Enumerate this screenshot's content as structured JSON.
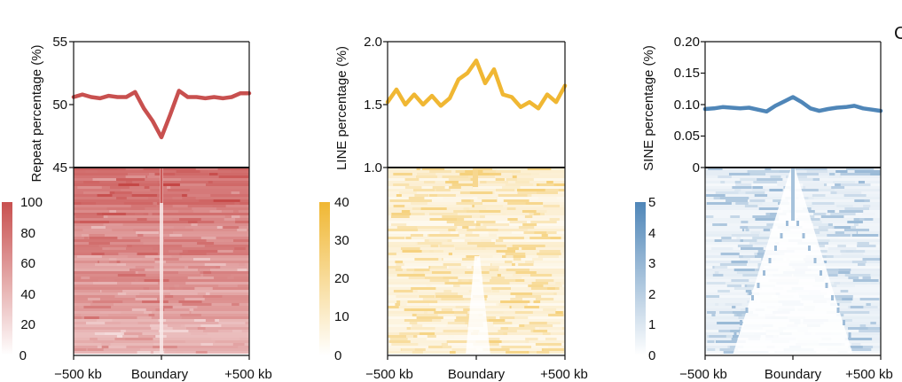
{
  "corner_label": "C",
  "chart_data": [
    {
      "type": "line",
      "panel": "repeat",
      "ylabel": "Repeat percentage (%)",
      "color": "#c8504f",
      "ylim": [
        45,
        55
      ],
      "yticks": [
        "45",
        "50",
        "55"
      ],
      "ytick_values": [
        45,
        50,
        55
      ],
      "x_ticks": [
        "−500 kb",
        "Boundary",
        "+500 kb"
      ],
      "x_tick_values": [
        -500,
        0,
        500
      ],
      "x": [
        -500,
        -450,
        -400,
        -350,
        -300,
        -250,
        -200,
        -150,
        -100,
        -50,
        0,
        50,
        100,
        150,
        200,
        250,
        300,
        350,
        400,
        450,
        500
      ],
      "series": [
        {
          "values": [
            50.6,
            50.8,
            50.6,
            50.5,
            50.7,
            50.6,
            50.6,
            51.0,
            49.7,
            48.7,
            47.4,
            49.2,
            51.1,
            50.6,
            50.6,
            50.5,
            50.6,
            50.5,
            50.6,
            50.9,
            50.9
          ]
        }
      ],
      "heatmap": {
        "colorbar_ticks": [
          "0",
          "20",
          "40",
          "60",
          "80",
          "100"
        ],
        "colorbar_values": [
          0,
          20,
          40,
          60,
          80,
          100
        ],
        "colorbar_range": [
          0,
          100
        ]
      }
    },
    {
      "type": "line",
      "panel": "line",
      "ylabel": "LINE percentage (%)",
      "color": "#f0b733",
      "ylim": [
        1.0,
        2.0
      ],
      "yticks": [
        "1.0",
        "1.5",
        "2.0"
      ],
      "ytick_values": [
        1.0,
        1.5,
        2.0
      ],
      "x_ticks": [
        "−500 kb",
        "Boundary",
        "+500 kb"
      ],
      "x_tick_values": [
        -500,
        0,
        500
      ],
      "x": [
        -500,
        -450,
        -400,
        -350,
        -300,
        -250,
        -200,
        -150,
        -100,
        -50,
        0,
        50,
        100,
        150,
        200,
        250,
        300,
        350,
        400,
        450,
        500
      ],
      "series": [
        {
          "values": [
            1.52,
            1.62,
            1.5,
            1.58,
            1.5,
            1.57,
            1.49,
            1.55,
            1.7,
            1.75,
            1.85,
            1.67,
            1.78,
            1.58,
            1.56,
            1.48,
            1.52,
            1.47,
            1.58,
            1.52,
            1.65
          ]
        }
      ],
      "heatmap": {
        "colorbar_ticks": [
          "0",
          "10",
          "20",
          "30",
          "40"
        ],
        "colorbar_values": [
          0,
          10,
          20,
          30,
          40
        ],
        "colorbar_range": [
          0,
          40
        ]
      }
    },
    {
      "type": "line",
      "panel": "sine",
      "ylabel": "SINE percentage (%)",
      "color": "#4f86b8",
      "ylim": [
        0,
        0.2
      ],
      "yticks": [
        "0",
        "0.05",
        "0.10",
        "0.15",
        "0.20"
      ],
      "ytick_values": [
        0,
        0.05,
        0.1,
        0.15,
        0.2
      ],
      "x_ticks": [
        "−500 kb",
        "Boundary",
        "+500 kb"
      ],
      "x_tick_values": [
        -500,
        0,
        500
      ],
      "x": [
        -500,
        -450,
        -400,
        -350,
        -300,
        -250,
        -200,
        -150,
        -100,
        -50,
        0,
        50,
        100,
        150,
        200,
        250,
        300,
        350,
        400,
        450,
        500
      ],
      "series": [
        {
          "values": [
            0.093,
            0.094,
            0.096,
            0.095,
            0.094,
            0.095,
            0.092,
            0.089,
            0.098,
            0.105,
            0.112,
            0.104,
            0.094,
            0.09,
            0.093,
            0.095,
            0.096,
            0.098,
            0.094,
            0.092,
            0.09
          ]
        }
      ],
      "heatmap": {
        "colorbar_ticks": [
          "0",
          "1",
          "2",
          "3",
          "4",
          "5"
        ],
        "colorbar_values": [
          0,
          1,
          2,
          3,
          4,
          5
        ],
        "colorbar_range": [
          0,
          5
        ]
      }
    }
  ]
}
